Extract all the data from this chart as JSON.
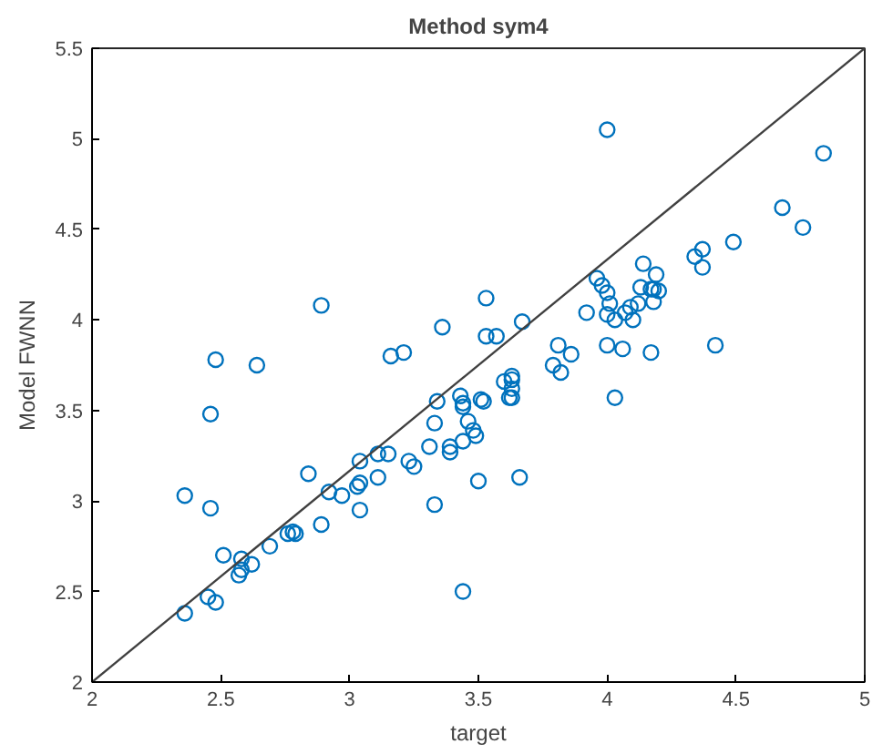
{
  "chart_data": {
    "type": "scatter",
    "title": "Method sym4",
    "xlabel": "target",
    "ylabel": "Model FWNN",
    "xlim": [
      2,
      5
    ],
    "ylim": [
      2,
      5.5
    ],
    "xticks": [
      2,
      2.5,
      3,
      3.5,
      4,
      4.5,
      5
    ],
    "yticks": [
      2,
      2.5,
      3,
      3.5,
      4,
      4.5,
      5,
      5.5
    ],
    "grid": false,
    "marker": "circle",
    "series": [
      {
        "color": "#0072bd",
        "x": [
          2.89,
          2.48,
          2.64,
          2.46,
          2.36,
          2.46,
          2.51,
          2.58,
          2.62,
          2.57,
          2.58,
          2.45,
          2.48,
          2.36,
          2.69,
          2.76,
          2.78,
          2.79,
          2.89,
          2.84,
          2.92,
          2.97,
          3.03,
          3.04,
          3.04,
          3.04,
          3.11,
          3.11,
          3.15,
          3.16,
          3.21,
          3.23,
          3.25,
          3.31,
          3.33,
          3.33,
          3.34,
          3.36,
          3.39,
          3.39,
          3.44,
          3.43,
          3.44,
          3.44,
          3.46,
          3.48,
          3.49,
          3.5,
          3.51,
          3.52,
          3.53,
          3.53,
          3.57,
          3.44,
          3.6,
          3.62,
          3.67,
          3.63,
          3.63,
          3.63,
          3.63,
          3.66,
          3.79,
          3.81,
          3.82,
          3.86,
          3.92,
          3.96,
          3.98,
          4.0,
          4.01,
          4.0,
          4.03,
          4.0,
          4.06,
          4.03,
          4.07,
          4.09,
          4.1,
          4.12,
          4.13,
          4.14,
          4.17,
          4.18,
          4.2,
          4.18,
          4.19,
          4.17,
          4.34,
          4.37,
          4.37,
          4.42,
          4.49,
          4.0,
          4.68,
          4.76,
          4.84
        ],
        "values": [
          4.08,
          3.78,
          3.75,
          3.48,
          3.03,
          2.96,
          2.7,
          2.68,
          2.65,
          2.59,
          2.62,
          2.47,
          2.44,
          2.38,
          2.75,
          2.82,
          2.83,
          2.82,
          2.87,
          3.15,
          3.05,
          3.03,
          3.08,
          3.1,
          2.95,
          3.22,
          3.13,
          3.26,
          3.26,
          3.8,
          3.82,
          3.22,
          3.19,
          3.3,
          2.98,
          3.43,
          3.55,
          3.96,
          3.3,
          3.27,
          3.33,
          3.58,
          3.52,
          3.54,
          3.44,
          3.39,
          3.36,
          3.11,
          3.56,
          3.55,
          4.12,
          3.91,
          3.91,
          2.5,
          3.66,
          3.57,
          3.99,
          3.69,
          3.67,
          3.62,
          3.57,
          3.13,
          3.75,
          3.86,
          3.71,
          3.81,
          4.04,
          4.23,
          4.19,
          4.15,
          4.09,
          4.03,
          4.0,
          3.86,
          3.84,
          3.57,
          4.04,
          4.07,
          4.0,
          4.09,
          4.18,
          4.31,
          4.17,
          4.17,
          4.16,
          4.1,
          4.25,
          3.82,
          4.35,
          4.39,
          4.29,
          3.86,
          4.43,
          5.05,
          4.62,
          4.51,
          4.92
        ]
      },
      {
        "type": "line",
        "color": "#404040",
        "marker": "none",
        "x": [
          2,
          5
        ],
        "values": [
          2,
          5.5
        ]
      }
    ]
  }
}
